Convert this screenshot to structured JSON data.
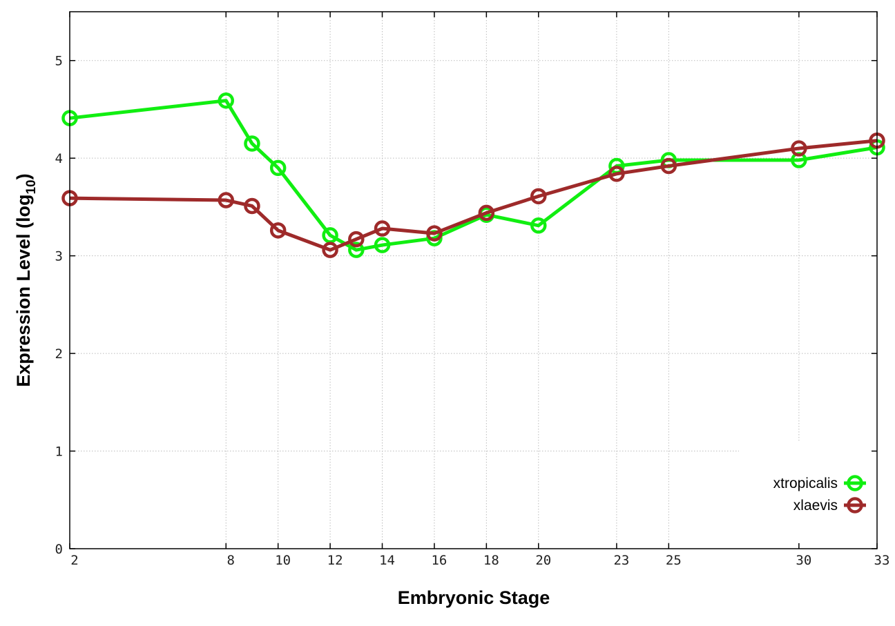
{
  "chart_data": {
    "type": "line",
    "title": "",
    "xlabel": "Embryonic Stage",
    "ylabel_main": "Expression Level (log",
    "ylabel_sub": "10",
    "ylabel_close": ")",
    "xlim": [
      2,
      33
    ],
    "ylim": [
      0,
      5.5
    ],
    "x_ticks": [
      2,
      8,
      10,
      12,
      14,
      16,
      18,
      20,
      23,
      25,
      30,
      33
    ],
    "y_ticks": [
      0,
      1,
      2,
      3,
      4,
      5
    ],
    "x": [
      2,
      8,
      9,
      10,
      12,
      13,
      14,
      16,
      18,
      20,
      23,
      25,
      30,
      33
    ],
    "grid": true,
    "legend_position": "bottom-right",
    "series": [
      {
        "name": "xtropicalis",
        "color": "#11ee11",
        "values": [
          4.41,
          4.59,
          4.15,
          3.9,
          3.21,
          3.06,
          3.11,
          3.18,
          3.42,
          3.31,
          3.92,
          3.98,
          3.98,
          4.11
        ]
      },
      {
        "name": "xlaevis",
        "color": "#9e2a2a",
        "values": [
          3.59,
          3.57,
          3.51,
          3.26,
          3.06,
          3.17,
          3.28,
          3.23,
          3.44,
          3.61,
          3.84,
          3.92,
          4.1,
          4.18
        ]
      }
    ]
  }
}
